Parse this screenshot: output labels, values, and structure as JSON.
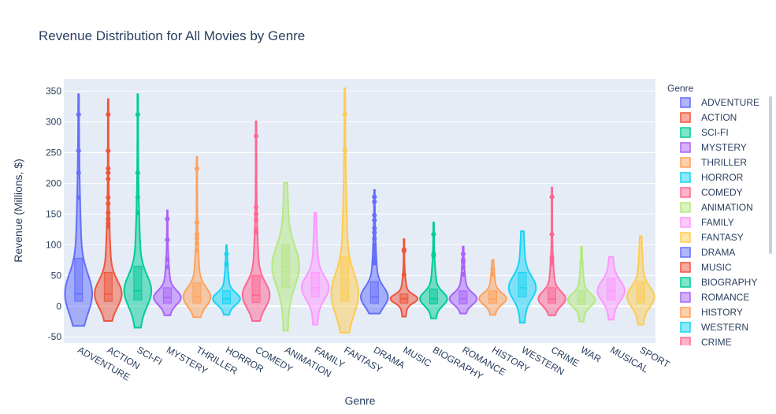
{
  "chart_data": {
    "type": "violin",
    "title": "Revenue Distribution for All Movies by Genre",
    "xlabel": "Genre",
    "ylabel": "Revenue (Millions, $)",
    "ylim": [
      -60,
      370
    ],
    "yticks": [
      -50,
      0,
      50,
      100,
      150,
      200,
      250,
      300,
      350
    ],
    "grid": true,
    "legend_title": "Genre",
    "legend_position": "right",
    "series": [
      {
        "name": "ADVENTURE",
        "color": "#636efa",
        "median": 20,
        "q1": 8,
        "q3": 78,
        "min": -32,
        "max": 345,
        "points": [
          312,
          253,
          217,
          177
        ]
      },
      {
        "name": "ACTION",
        "color": "#ef553b",
        "median": 20,
        "q1": 8,
        "q3": 55,
        "min": -24,
        "max": 337,
        "points": [
          312,
          253,
          224,
          217,
          207,
          177,
          167,
          152,
          142,
          135,
          130
        ]
      },
      {
        "name": "SCI-FI",
        "color": "#00cc96",
        "median": 25,
        "q1": 10,
        "q3": 65,
        "min": -35,
        "max": 345,
        "points": [
          312,
          217,
          177,
          152
        ]
      },
      {
        "name": "MYSTERY",
        "color": "#ab63fa",
        "median": 14,
        "q1": 5,
        "q3": 30,
        "min": -15,
        "max": 156,
        "points": [
          142,
          108,
          76,
          64
        ]
      },
      {
        "name": "THRILLER",
        "color": "#ffa15a",
        "median": 15,
        "q1": 5,
        "q3": 38,
        "min": -18,
        "max": 243,
        "points": [
          224,
          136,
          117,
          110,
          102,
          91
        ]
      },
      {
        "name": "HORROR",
        "color": "#19d3f3",
        "median": 12,
        "q1": 4,
        "q3": 25,
        "min": -14,
        "max": 99,
        "points": [
          85,
          69,
          67
        ]
      },
      {
        "name": "COMEDY",
        "color": "#ff6692",
        "median": 18,
        "q1": 6,
        "q3": 50,
        "min": -24,
        "max": 301,
        "points": [
          277,
          161,
          150,
          140,
          125,
          120
        ]
      },
      {
        "name": "ANIMATION",
        "color": "#b6e880",
        "median": 65,
        "q1": 30,
        "q3": 100,
        "min": -40,
        "max": 201,
        "points": []
      },
      {
        "name": "FAMILY",
        "color": "#ff97ff",
        "median": 30,
        "q1": 15,
        "q3": 55,
        "min": -30,
        "max": 152,
        "points": []
      },
      {
        "name": "FANTASY",
        "color": "#fecb52",
        "median": 20,
        "q1": 8,
        "q3": 80,
        "min": -43,
        "max": 355,
        "points": [
          312,
          253
        ]
      },
      {
        "name": "DRAMA",
        "color": "#636efa",
        "median": 15,
        "q1": 5,
        "q3": 40,
        "min": -12,
        "max": 189,
        "points": [
          178,
          170,
          148,
          140,
          127,
          120,
          110,
          100,
          95,
          88,
          80,
          75,
          70
        ]
      },
      {
        "name": "MUSIC",
        "color": "#ef553b",
        "median": 12,
        "q1": 5,
        "q3": 20,
        "min": -17,
        "max": 109,
        "points": [
          92,
          90,
          51
        ]
      },
      {
        "name": "BIOGRAPHY",
        "color": "#00cc96",
        "median": 12,
        "q1": 4,
        "q3": 28,
        "min": -20,
        "max": 136,
        "points": [
          117,
          85,
          82
        ]
      },
      {
        "name": "ROMANCE",
        "color": "#ab63fa",
        "median": 12,
        "q1": 4,
        "q3": 25,
        "min": -12,
        "max": 97,
        "points": [
          85,
          75,
          72,
          63,
          52
        ]
      },
      {
        "name": "HISTORY",
        "color": "#ffa15a",
        "median": 12,
        "q1": 5,
        "q3": 25,
        "min": -14,
        "max": 75,
        "points": [
          60,
          52
        ]
      },
      {
        "name": "WESTERN",
        "color": "#19d3f3",
        "median": 30,
        "q1": 15,
        "q3": 55,
        "min": -27,
        "max": 122,
        "points": []
      },
      {
        "name": "CRIME",
        "color": "#ff6692",
        "median": 12,
        "q1": 5,
        "q3": 30,
        "min": -15,
        "max": 193,
        "points": [
          178,
          117,
          80,
          75,
          70
        ]
      },
      {
        "name": "WAR",
        "color": "#b6e880",
        "median": 10,
        "q1": 3,
        "q3": 25,
        "min": -25,
        "max": 97,
        "points": [
          71
        ]
      },
      {
        "name": "MUSICAL",
        "color": "#ff97ff",
        "median": 25,
        "q1": 10,
        "q3": 45,
        "min": -22,
        "max": 80,
        "points": []
      },
      {
        "name": "SPORT",
        "color": "#fecb52",
        "median": 15,
        "q1": 5,
        "q3": 40,
        "min": -30,
        "max": 114,
        "points": []
      }
    ],
    "legend_visible": [
      "ADVENTURE",
      "ACTION",
      "SCI-FI",
      "MYSTERY",
      "THRILLER",
      "HORROR",
      "COMEDY",
      "ANIMATION",
      "FAMILY",
      "FANTASY",
      "DRAMA",
      "MUSIC",
      "BIOGRAPHY",
      "ROMANCE",
      "HISTORY",
      "WESTERN",
      "CRIME"
    ]
  }
}
